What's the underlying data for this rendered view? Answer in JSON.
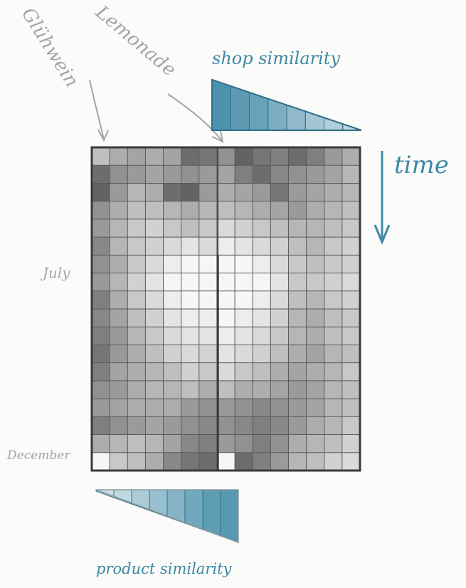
{
  "labels": {
    "gluhwein": "Glühwein",
    "lemonade": "Lemonade",
    "shop_similarity": "shop similarity",
    "time": "time",
    "july": "July",
    "december": "December",
    "product_similarity": "product similarity"
  },
  "colors": {
    "accent_blue": "#3d88a6",
    "annotation_gray": "#9ea6a8",
    "grid_line": "#4a4a4a",
    "cell_dark": "#4b4b4b",
    "cell_light": "#ffffff"
  },
  "grid": {
    "rows": 18,
    "cols": 15,
    "intensity": [
      [
        0.35,
        0.45,
        0.5,
        0.45,
        0.5,
        0.8,
        0.75,
        0.6,
        0.85,
        0.75,
        0.7,
        0.8,
        0.7,
        0.55,
        0.45
      ],
      [
        0.8,
        0.6,
        0.55,
        0.5,
        0.55,
        0.6,
        0.55,
        0.5,
        0.7,
        0.8,
        0.65,
        0.6,
        0.55,
        0.5,
        0.4
      ],
      [
        0.85,
        0.55,
        0.4,
        0.45,
        0.8,
        0.85,
        0.55,
        0.45,
        0.5,
        0.55,
        0.75,
        0.55,
        0.5,
        0.45,
        0.4
      ],
      [
        0.6,
        0.45,
        0.35,
        0.35,
        0.4,
        0.45,
        0.4,
        0.35,
        0.4,
        0.45,
        0.5,
        0.55,
        0.45,
        0.4,
        0.35
      ],
      [
        0.55,
        0.4,
        0.3,
        0.25,
        0.3,
        0.35,
        0.3,
        0.2,
        0.25,
        0.3,
        0.35,
        0.4,
        0.4,
        0.35,
        0.3
      ],
      [
        0.65,
        0.4,
        0.3,
        0.25,
        0.2,
        0.15,
        0.2,
        0.1,
        0.15,
        0.2,
        0.25,
        0.35,
        0.4,
        0.3,
        0.25
      ],
      [
        0.6,
        0.45,
        0.3,
        0.2,
        0.1,
        0.05,
        0.05,
        0.05,
        0.05,
        0.1,
        0.2,
        0.3,
        0.35,
        0.3,
        0.25
      ],
      [
        0.55,
        0.4,
        0.25,
        0.15,
        0.05,
        0.05,
        0.05,
        0.05,
        0.05,
        0.05,
        0.15,
        0.3,
        0.3,
        0.25,
        0.2
      ],
      [
        0.7,
        0.45,
        0.3,
        0.2,
        0.1,
        0.05,
        0.05,
        0.05,
        0.05,
        0.1,
        0.2,
        0.35,
        0.4,
        0.3,
        0.25
      ],
      [
        0.65,
        0.5,
        0.35,
        0.25,
        0.15,
        0.1,
        0.1,
        0.05,
        0.1,
        0.15,
        0.25,
        0.4,
        0.45,
        0.35,
        0.3
      ],
      [
        0.7,
        0.55,
        0.4,
        0.3,
        0.2,
        0.15,
        0.15,
        0.1,
        0.15,
        0.2,
        0.3,
        0.4,
        0.45,
        0.35,
        0.3
      ],
      [
        0.75,
        0.55,
        0.45,
        0.35,
        0.25,
        0.2,
        0.25,
        0.15,
        0.2,
        0.25,
        0.35,
        0.45,
        0.5,
        0.4,
        0.35
      ],
      [
        0.7,
        0.5,
        0.45,
        0.4,
        0.35,
        0.25,
        0.3,
        0.2,
        0.3,
        0.35,
        0.45,
        0.5,
        0.45,
        0.4,
        0.3
      ],
      [
        0.6,
        0.55,
        0.45,
        0.4,
        0.4,
        0.35,
        0.45,
        0.35,
        0.45,
        0.45,
        0.5,
        0.55,
        0.5,
        0.4,
        0.35
      ],
      [
        0.55,
        0.5,
        0.45,
        0.45,
        0.45,
        0.55,
        0.6,
        0.55,
        0.6,
        0.65,
        0.6,
        0.55,
        0.5,
        0.4,
        0.35
      ],
      [
        0.7,
        0.6,
        0.55,
        0.5,
        0.55,
        0.6,
        0.65,
        0.6,
        0.65,
        0.7,
        0.65,
        0.55,
        0.45,
        0.4,
        0.3
      ],
      [
        0.45,
        0.4,
        0.35,
        0.4,
        0.5,
        0.65,
        0.7,
        0.55,
        0.6,
        0.7,
        0.6,
        0.45,
        0.4,
        0.35,
        0.25
      ],
      [
        0.05,
        0.3,
        0.35,
        0.45,
        0.65,
        0.75,
        0.8,
        0.05,
        0.8,
        0.7,
        0.55,
        0.4,
        0.35,
        0.25,
        0.2
      ]
    ]
  },
  "shop_similarity_wedge": {
    "bands": [
      0.95,
      0.85,
      0.75,
      0.6,
      0.45,
      0.3,
      0.18,
      0.08
    ]
  },
  "product_similarity_wedge": {
    "bands": [
      0.05,
      0.15,
      0.3,
      0.45,
      0.6,
      0.75,
      0.9,
      0.95
    ]
  }
}
